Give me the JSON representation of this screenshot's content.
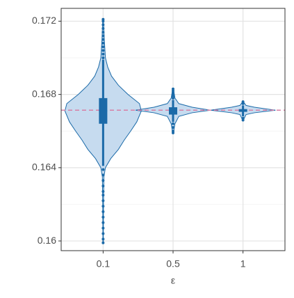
{
  "chart_data": {
    "type": "violin",
    "x_label": "ε",
    "categories": [
      "0.1",
      "0.5",
      "1"
    ],
    "ylim": [
      0.15947,
      0.1727
    ],
    "yticks": [
      0.16,
      0.164,
      0.168,
      0.172
    ],
    "minor_yticks": [
      0.162,
      0.166,
      0.17
    ],
    "grid": true,
    "hline": 0.16714,
    "hline_color": "#d77fa6",
    "fill": "#c6dbef",
    "color": "#1b6aa8",
    "violins": [
      {
        "y": [
          0.1599,
          0.162,
          0.1635,
          0.164,
          0.1645,
          0.165,
          0.1655,
          0.166,
          0.1665,
          0.1671,
          0.1675,
          0.168,
          0.1685,
          0.169,
          0.1695,
          0.17,
          0.171,
          0.1721
        ],
        "density": [
          0.005,
          0.01,
          0.02,
          0.06,
          0.2,
          0.4,
          0.55,
          0.72,
          0.88,
          1.0,
          0.95,
          0.65,
          0.4,
          0.22,
          0.12,
          0.06,
          0.03,
          0.01
        ],
        "box": {
          "whisker_low": 0.1641,
          "q1": 0.1664,
          "median": 0.1671,
          "q3": 0.1678,
          "whisker_high": 0.1699
        },
        "outliers": [
          0.17,
          0.1702,
          0.1704,
          0.1706,
          0.1708,
          0.171,
          0.1712,
          0.1714,
          0.1716,
          0.1718,
          0.172,
          0.1721,
          0.1639,
          0.1636,
          0.1633,
          0.163,
          0.1627,
          0.1625,
          0.1622,
          0.1619,
          0.1616,
          0.1613,
          0.161,
          0.1607,
          0.1604,
          0.1601,
          0.1599
        ]
      },
      {
        "y": [
          0.1659,
          0.1664,
          0.1668,
          0.167,
          0.16714,
          0.1673,
          0.1675,
          0.1678,
          0.1683
        ],
        "density": [
          0.01,
          0.05,
          0.15,
          0.5,
          0.98,
          0.5,
          0.15,
          0.05,
          0.01
        ],
        "box": {
          "whisker_low": 0.1665,
          "q1": 0.1669,
          "median": 0.1671,
          "q3": 0.1673,
          "whisker_high": 0.1677
        },
        "outliers": [
          0.1678,
          0.1679,
          0.168,
          0.1681,
          0.1682,
          0.1683,
          0.1664,
          0.1662,
          0.166,
          0.1659
        ]
      },
      {
        "y": [
          0.1666,
          0.1669,
          0.167,
          0.16714,
          0.1673,
          0.1674,
          0.1676
        ],
        "density": [
          0.01,
          0.08,
          0.3,
          0.85,
          0.3,
          0.08,
          0.01
        ],
        "box": {
          "whisker_low": 0.1668,
          "q1": 0.16705,
          "median": 0.1671,
          "q3": 0.1672,
          "whisker_high": 0.1674
        },
        "outliers": [
          0.1675,
          0.1676,
          0.1667,
          0.1666
        ]
      }
    ]
  }
}
